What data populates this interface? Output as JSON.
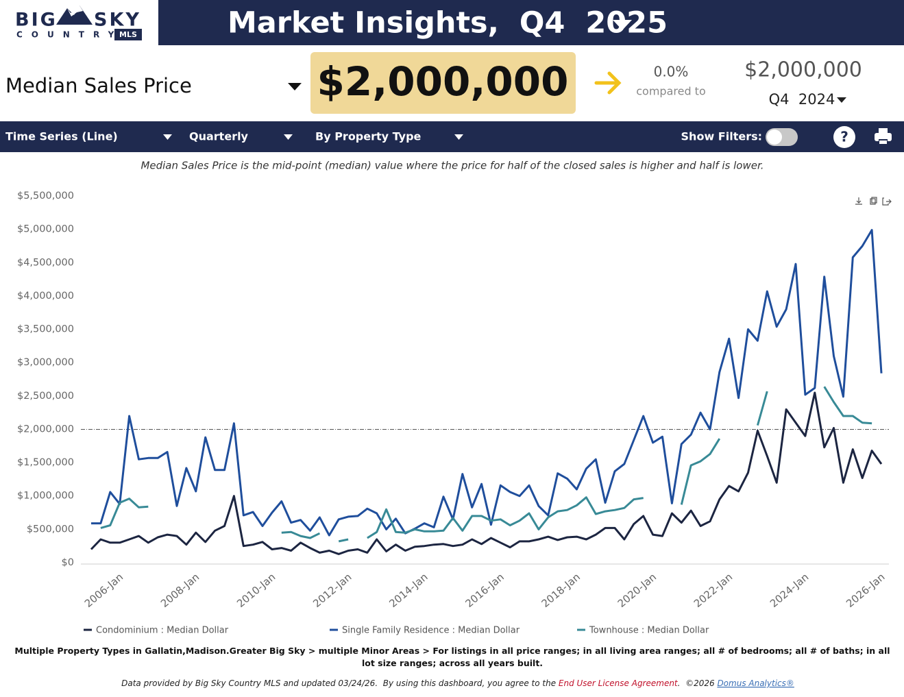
{
  "header": {
    "logo_big": "BIG",
    "logo_sky": "SKY",
    "logo_country": "COUNTRY",
    "logo_mls": "MLS",
    "title": "Market Insights,  Q4  2025"
  },
  "kpi": {
    "metric": "Median Sales Price",
    "value": "$2,000,000",
    "change": "0.0%",
    "compared_to": "compared to",
    "prior_value": "$2,000,000",
    "prior_period": "Q4  2024"
  },
  "toolbar": {
    "chart_type": "Time Series (Line)",
    "frequency": "Quarterly",
    "grouping": "By Property Type",
    "show_filters": "Show Filters:",
    "help": "?"
  },
  "description": "Median Sales Price is the mid-point (median) value where the price for half of the closed sales is higher and half is lower.",
  "chart_data": {
    "type": "line",
    "categories": [
      null,
      null,
      null,
      "2006-Jan",
      null,
      null,
      null,
      null,
      null,
      null,
      null,
      "2008-Jan",
      null,
      null,
      null,
      null,
      null,
      null,
      null,
      "2010-Jan",
      null,
      null,
      null,
      null,
      null,
      null,
      null,
      "2012-Jan",
      null,
      null,
      null,
      null,
      null,
      null,
      null,
      "2014-Jan",
      null,
      null,
      null,
      null,
      null,
      null,
      null,
      "2016-Jan",
      null,
      null,
      null,
      null,
      null,
      null,
      null,
      "2018-Jan",
      null,
      null,
      null,
      null,
      null,
      null,
      null,
      "2020-Jan",
      null,
      null,
      null,
      null,
      null,
      null,
      null,
      "2022-Jan",
      null,
      null,
      null,
      null,
      null,
      null,
      null,
      "2024-Jan",
      null,
      null,
      null,
      null,
      null,
      null,
      null,
      "2026-Jan"
    ],
    "series": [
      {
        "name": "Condominium : Median Dollar",
        "color": "#1c2541",
        "values": [
          200000,
          350000,
          300000,
          300000,
          350000,
          400000,
          300000,
          380000,
          420000,
          400000,
          270000,
          450000,
          310000,
          480000,
          550000,
          1000000,
          250000,
          270000,
          310000,
          200000,
          220000,
          180000,
          300000,
          220000,
          150000,
          180000,
          130000,
          180000,
          200000,
          150000,
          350000,
          170000,
          270000,
          180000,
          240000,
          250000,
          270000,
          280000,
          250000,
          270000,
          350000,
          280000,
          370000,
          300000,
          230000,
          320000,
          320000,
          350000,
          390000,
          340000,
          380000,
          390000,
          350000,
          420000,
          520000,
          520000,
          350000,
          580000,
          700000,
          420000,
          400000,
          740000,
          600000,
          780000,
          550000,
          620000,
          950000,
          1150000,
          1070000,
          1350000,
          1980000,
          1600000,
          1200000,
          2300000,
          2100000,
          1900000,
          2550000,
          1730000,
          2020000,
          1200000,
          1700000,
          1270000,
          1680000,
          1480000
        ]
      },
      {
        "name": "Single Family Residence : Median Dollar",
        "color": "#1f4e9c",
        "values": [
          590000,
          590000,
          1060000,
          880000,
          2200000,
          1550000,
          1570000,
          1570000,
          1660000,
          850000,
          1420000,
          1070000,
          1880000,
          1390000,
          1390000,
          2090000,
          710000,
          760000,
          550000,
          750000,
          920000,
          600000,
          640000,
          480000,
          680000,
          410000,
          650000,
          690000,
          700000,
          810000,
          740000,
          500000,
          660000,
          440000,
          510000,
          590000,
          530000,
          990000,
          650000,
          1330000,
          830000,
          1180000,
          570000,
          1160000,
          1060000,
          1000000,
          1160000,
          850000,
          710000,
          1340000,
          1260000,
          1100000,
          1410000,
          1550000,
          900000,
          1370000,
          1480000,
          1840000,
          2200000,
          1800000,
          1890000,
          890000,
          1780000,
          1920000,
          2250000,
          2000000,
          2860000,
          3360000,
          2470000,
          3500000,
          3330000,
          4070000,
          3540000,
          3800000,
          4480000,
          2520000,
          2620000,
          4290000,
          3100000,
          2490000,
          4580000,
          4750000,
          4990000,
          2840000
        ]
      },
      {
        "name": "Townhouse : Median Dollar",
        "color": "#388a96",
        "values": [
          null,
          520000,
          560000,
          900000,
          960000,
          830000,
          840000,
          null,
          null,
          null,
          null,
          null,
          null,
          null,
          null,
          null,
          null,
          null,
          null,
          null,
          450000,
          460000,
          400000,
          370000,
          440000,
          null,
          320000,
          350000,
          null,
          370000,
          460000,
          800000,
          460000,
          450000,
          500000,
          470000,
          470000,
          480000,
          670000,
          480000,
          700000,
          700000,
          630000,
          650000,
          560000,
          630000,
          740000,
          500000,
          680000,
          770000,
          790000,
          860000,
          980000,
          730000,
          770000,
          790000,
          820000,
          950000,
          970000,
          null,
          null,
          null,
          870000,
          1460000,
          1520000,
          1630000,
          1860000,
          null,
          null,
          null,
          2060000,
          2570000,
          null,
          null,
          null,
          null,
          null,
          2640000,
          2410000,
          2200000,
          2200000,
          2100000,
          2090000,
          null
        ]
      }
    ],
    "ylim": [
      0,
      5500000
    ],
    "yticks": [
      {
        "value": 0,
        "label": "$0"
      },
      {
        "value": 500000,
        "label": "$500,000"
      },
      {
        "value": 1000000,
        "label": "$1,000,000"
      },
      {
        "value": 1500000,
        "label": "$1,500,000"
      },
      {
        "value": 2000000,
        "label": "$2,000,000"
      },
      {
        "value": 2500000,
        "label": "$2,500,000"
      },
      {
        "value": 3000000,
        "label": "$3,000,000"
      },
      {
        "value": 3500000,
        "label": "$3,500,000"
      },
      {
        "value": 4000000,
        "label": "$4,000,000"
      },
      {
        "value": 4500000,
        "label": "$4,500,000"
      },
      {
        "value": 5000000,
        "label": "$5,000,000"
      },
      {
        "value": 5500000,
        "label": "$5,500,000"
      }
    ],
    "grid": false,
    "reference_line": 2000000,
    "legend": "bottom"
  },
  "footnote": "Multiple Property Types in Gallatin,Madison.Greater Big Sky > multiple Minor Areas > For listings in all price ranges; in all living area ranges; all # of bedrooms; all # of baths; in all lot size ranges; across all years built.",
  "attribution": {
    "text": "Data provided by Big Sky Country MLS and updated 03/24/26.  By using this dashboard, you agree to the ",
    "license_link": "End User License Agreement",
    "copyright": ".  ©2026 ",
    "vendor_link": "Domus Analytics®"
  }
}
